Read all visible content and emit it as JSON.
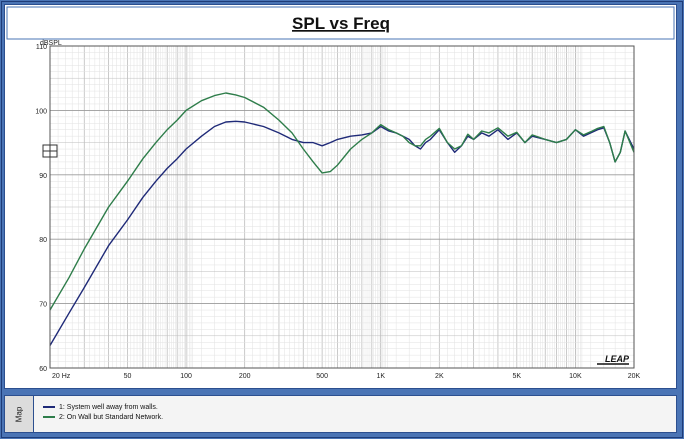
{
  "map_tab_label": "Map",
  "colors": {
    "series1": "#1f2a78",
    "series2": "#2e7d4a",
    "grid_major": "#bdbdbd",
    "grid_minor": "#e2e2e2",
    "frame": "#4a74b5"
  },
  "chart_data": {
    "type": "line",
    "title": "SPL vs Freq",
    "ylabel": "dBSPL",
    "xlabel": "",
    "x_scale": "log",
    "xlim": [
      20,
      20000
    ],
    "ylim": [
      60,
      110
    ],
    "grid": true,
    "legend_placement": "bottom panel",
    "x_ticks": [
      20,
      50,
      100,
      200,
      500,
      1000,
      2000,
      5000,
      10000,
      20000
    ],
    "x_tick_labels": [
      "20  Hz",
      "50",
      "100",
      "200",
      "500",
      "1K",
      "2K",
      "5K",
      "10K",
      "20K"
    ],
    "y_ticks": [
      60,
      70,
      80,
      90,
      100,
      110
    ],
    "y_tick_labels": [
      "60",
      "70",
      "80",
      "90",
      "100",
      "110"
    ],
    "logo": "LEAP",
    "series": [
      {
        "name": "1: System well away from walls.",
        "color": "#1f2a78",
        "x": [
          20,
          25,
          30,
          40,
          50,
          60,
          70,
          80,
          90,
          100,
          120,
          140,
          160,
          180,
          200,
          250,
          300,
          350,
          400,
          450,
          500,
          550,
          600,
          700,
          800,
          900,
          1000,
          1100,
          1200,
          1300,
          1400,
          1500,
          1600,
          1700,
          1800,
          2000,
          2200,
          2400,
          2600,
          2800,
          3000,
          3300,
          3600,
          4000,
          4500,
          5000,
          5500,
          6000,
          7000,
          8000,
          9000,
          10000,
          11000,
          12000,
          13000,
          14000,
          15000,
          16000,
          17000,
          18000,
          20000
        ],
        "y": [
          63.5,
          68.5,
          72.5,
          79.0,
          83.0,
          86.5,
          89.0,
          91.0,
          92.5,
          94.0,
          96.0,
          97.5,
          98.2,
          98.3,
          98.2,
          97.5,
          96.5,
          95.5,
          95.0,
          95.0,
          94.5,
          95.0,
          95.5,
          96.0,
          96.2,
          96.5,
          97.5,
          96.8,
          96.5,
          96.0,
          95.5,
          94.5,
          94.0,
          95.0,
          95.5,
          97.0,
          95.0,
          93.5,
          94.5,
          96.0,
          95.5,
          96.5,
          96.0,
          97.0,
          95.5,
          96.5,
          95.0,
          96.0,
          95.5,
          95.0,
          95.5,
          97.0,
          96.0,
          96.5,
          97.0,
          97.3,
          95.0,
          92.0,
          93.5,
          96.8,
          94.0
        ]
      },
      {
        "name": "2: On Wall but Standard Network.",
        "color": "#2e7d4a",
        "x": [
          20,
          25,
          30,
          40,
          50,
          60,
          70,
          80,
          90,
          100,
          120,
          140,
          160,
          180,
          200,
          250,
          300,
          350,
          400,
          450,
          500,
          550,
          600,
          700,
          800,
          900,
          1000,
          1100,
          1200,
          1300,
          1400,
          1500,
          1600,
          1700,
          1800,
          2000,
          2200,
          2400,
          2600,
          2800,
          3000,
          3300,
          3600,
          4000,
          4500,
          5000,
          5500,
          6000,
          7000,
          8000,
          9000,
          10000,
          11000,
          12000,
          13000,
          14000,
          15000,
          16000,
          17000,
          18000,
          20000
        ],
        "y": [
          69.0,
          74.0,
          78.5,
          85.0,
          89.0,
          92.5,
          95.0,
          97.0,
          98.5,
          100.0,
          101.5,
          102.3,
          102.7,
          102.4,
          102.0,
          100.5,
          98.5,
          96.5,
          94.0,
          92.0,
          90.3,
          90.5,
          91.5,
          94.0,
          95.5,
          96.5,
          97.8,
          97.0,
          96.5,
          96.0,
          95.0,
          94.5,
          94.5,
          95.5,
          96.0,
          97.2,
          95.0,
          94.0,
          94.5,
          96.3,
          95.5,
          96.8,
          96.5,
          97.3,
          96.0,
          96.6,
          95.0,
          96.2,
          95.5,
          95.0,
          95.5,
          97.0,
          96.2,
          96.7,
          97.2,
          97.5,
          95.0,
          92.0,
          93.5,
          96.8,
          93.5
        ]
      }
    ]
  }
}
